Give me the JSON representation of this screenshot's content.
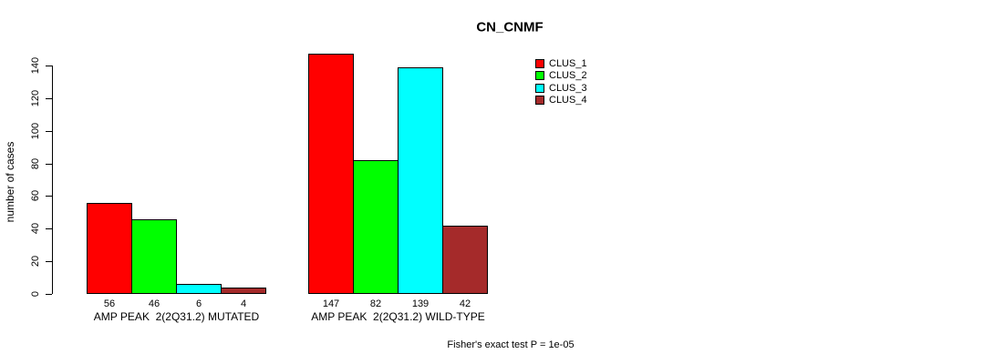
{
  "chart_data": {
    "type": "bar",
    "title": "CN_CNMF",
    "ylabel": "number of cases",
    "xlabel": "",
    "ylim": [
      0,
      140
    ],
    "yticks": [
      0,
      20,
      40,
      60,
      80,
      100,
      120,
      140
    ],
    "categories": [
      "AMP PEAK  2(2Q31.2) MUTATED",
      "AMP PEAK  2(2Q31.2) WILD-TYPE"
    ],
    "series": [
      {
        "name": "CLUS_1",
        "color": "#ff0000",
        "values": [
          56,
          147
        ]
      },
      {
        "name": "CLUS_2",
        "color": "#00ff00",
        "values": [
          46,
          82
        ]
      },
      {
        "name": "CLUS_3",
        "color": "#00ffff",
        "values": [
          6,
          139
        ]
      },
      {
        "name": "CLUS_4",
        "color": "#a52a2a",
        "values": [
          4,
          42
        ]
      }
    ],
    "legend": {
      "entries": [
        "CLUS_1",
        "CLUS_2",
        "CLUS_3",
        "CLUS_4"
      ],
      "position": "top-center"
    },
    "grid": false,
    "annotation": "Fisher's exact test P = 1e-05",
    "colors": {
      "background": "#ffffff",
      "axis": "#000000",
      "text": "#000000",
      "bar_border": "#000000"
    }
  }
}
